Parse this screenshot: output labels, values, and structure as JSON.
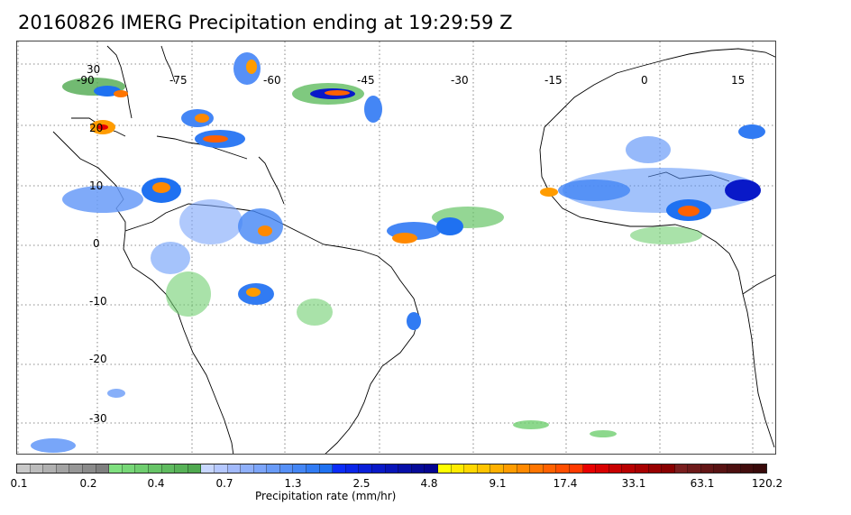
{
  "title": "20160826 IMERG Precipitation ending at 19:29:59 Z",
  "map": {
    "lon_labels": [
      "-90",
      "-75",
      "-60",
      "-45",
      "-30",
      "-15",
      "0",
      "15"
    ],
    "lat_labels": [
      "30",
      "20",
      "10",
      "0",
      "-10",
      "-20",
      "-30"
    ],
    "grid": "dotted",
    "coastline_color": "#000000"
  },
  "colorbar": {
    "label": "Precipitation rate (mm/hr)",
    "ticks": [
      "0.1",
      "0.2",
      "0.4",
      "0.7",
      "1.3",
      "2.5",
      "4.8",
      "9.1",
      "17.4",
      "33.1",
      "63.1",
      "120.2"
    ],
    "colors": [
      "#c9c9c9",
      "#bcbcbc",
      "#b0b0b0",
      "#a3a3a3",
      "#979797",
      "#8b8b8b",
      "#7f7f7f",
      "#7fe07f",
      "#77d777",
      "#6fce6f",
      "#67c467",
      "#5fbb5f",
      "#57b257",
      "#4fa94f",
      "#c8d7ff",
      "#b5c8ff",
      "#a2bafc",
      "#8fb0fb",
      "#7ca5fa",
      "#699bf8",
      "#5690f7",
      "#4486f5",
      "#317bf3",
      "#1f71f1",
      "#0b2cf8",
      "#0a25e8",
      "#0a1fd8",
      "#0919c8",
      "#0814b8",
      "#070fa8",
      "#060a98",
      "#050590",
      "#ffff00",
      "#ffeb00",
      "#ffd700",
      "#ffc400",
      "#ffb000",
      "#ff9c00",
      "#ff8900",
      "#ff7500",
      "#ff6100",
      "#ff4e00",
      "#ff3a00",
      "#e80000",
      "#d80000",
      "#c80000",
      "#b80000",
      "#a80000",
      "#980000",
      "#880000",
      "#7a1e1e",
      "#6e1a1a",
      "#631616",
      "#581313",
      "#4d1010",
      "#420d0d",
      "#380a0a"
    ]
  }
}
